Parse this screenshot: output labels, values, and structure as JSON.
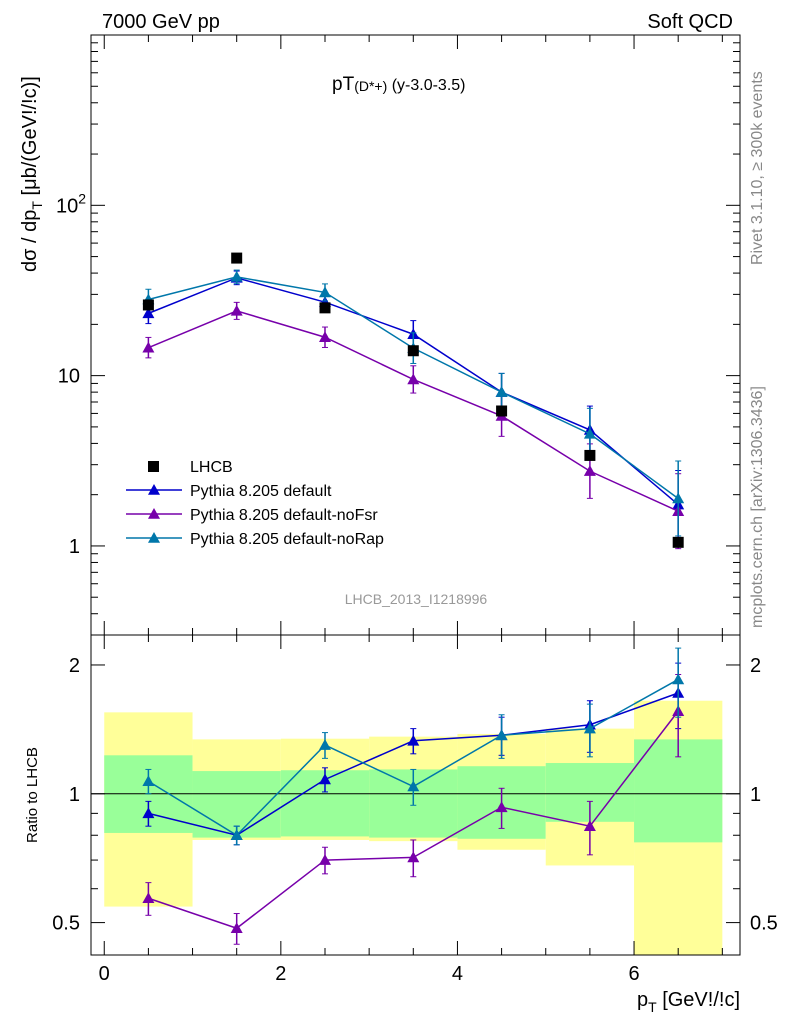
{
  "header": {
    "left": "7000 GeV pp",
    "right": "Soft QCD"
  },
  "side": {
    "rivet": "Rivet 3.1.10, ≥ 300k events",
    "mcplots": "mcplots.cern.ch [arXiv:1306.3436]"
  },
  "colors": {
    "data": "#000000",
    "default": "#0000cc",
    "noFsr": "#7700aa",
    "noRap": "#0077aa",
    "band_inner": "#99ff99",
    "band_outer": "#ffff99"
  },
  "chart_data": [
    {
      "type": "line",
      "title": "pT(D*+) (y-3.0-3.5)",
      "title_main": "pT",
      "title_sub": "(D*+)",
      "title_rest": " (y-3.0-3.5)",
      "ylabel": "dσ / dp_T [μb/(GeV!/!c)]",
      "ylabel_parts": [
        "dσ / dp",
        "T",
        " [μb/(GeV!/!c)]"
      ],
      "yscale": "log",
      "ylim": [
        0.3,
        1000
      ],
      "xlim": [
        -0.15,
        7.2
      ],
      "yticks": [
        {
          "v": 1,
          "label": "1"
        },
        {
          "v": 10,
          "label": "10"
        },
        {
          "v": 100,
          "label": "10",
          "sup": "2"
        }
      ],
      "analysis_label": "LHCB_2013_I1218996",
      "x": [
        0.5,
        1.5,
        2.5,
        3.5,
        4.5,
        5.5,
        6.5
      ],
      "legend": [
        {
          "name": "LHCB",
          "key": "data"
        },
        {
          "name": "Pythia 8.205 default",
          "key": "default"
        },
        {
          "name": "Pythia 8.205 default-noFsr",
          "key": "noFsr"
        },
        {
          "name": "Pythia 8.205 default-noRap",
          "key": "noRap"
        }
      ],
      "data": {
        "values": [
          26,
          49,
          25,
          14,
          6.2,
          3.4,
          1.05
        ]
      },
      "series": [
        {
          "name": "Pythia 8.205 default",
          "key": "default",
          "values": [
            23.2,
            37.5,
            27,
            17.5,
            8.0,
            4.8,
            1.75
          ],
          "err": [
            0.06,
            0.04,
            0.05,
            0.08,
            0.11,
            0.14,
            0.2
          ]
        },
        {
          "name": "Pythia 8.205 default-noFsr",
          "key": "noFsr",
          "values": [
            14.6,
            24.0,
            16.8,
            9.5,
            5.8,
            2.75,
            1.6
          ],
          "err": [
            0.06,
            0.05,
            0.06,
            0.08,
            0.12,
            0.16,
            0.22
          ]
        },
        {
          "name": "Pythia 8.205 default-noRap",
          "key": "noRap",
          "values": [
            28.0,
            38.0,
            30.8,
            14.5,
            8.0,
            4.55,
            1.9
          ],
          "err": [
            0.06,
            0.04,
            0.05,
            0.09,
            0.11,
            0.15,
            0.22
          ]
        }
      ]
    },
    {
      "type": "line",
      "ylabel": "Ratio to LHCB",
      "xlabel": "p_T [GeV!/!c]",
      "xlabel_parts": [
        "p",
        "T",
        " [GeV!/!c]"
      ],
      "yscale": "log",
      "ylim": [
        0.42,
        2.35
      ],
      "xlim": [
        -0.15,
        7.2
      ],
      "xticks": [
        0,
        2,
        4,
        6
      ],
      "yticks": [
        0.5,
        1,
        2
      ],
      "bins": [
        [
          0,
          1
        ],
        [
          1,
          2
        ],
        [
          2,
          3
        ],
        [
          3,
          4
        ],
        [
          4,
          5
        ],
        [
          5,
          6
        ],
        [
          6,
          7
        ]
      ],
      "band_inner": [
        [
          0.81,
          1.23
        ],
        [
          0.79,
          1.13
        ],
        [
          0.795,
          1.135
        ],
        [
          0.79,
          1.14
        ],
        [
          0.785,
          1.16
        ],
        [
          0.86,
          1.18
        ],
        [
          0.77,
          1.34
        ]
      ],
      "band_outer": [
        [
          0.545,
          1.55
        ],
        [
          0.78,
          1.34
        ],
        [
          0.78,
          1.345
        ],
        [
          0.775,
          1.36
        ],
        [
          0.74,
          1.38
        ],
        [
          0.68,
          1.42
        ],
        [
          0.42,
          1.65
        ]
      ],
      "series": [
        {
          "name": "Pythia 8.205 default",
          "key": "default",
          "values": [
            0.9,
            0.8,
            1.08,
            1.33,
            1.37,
            1.45,
            1.72
          ],
          "err": [
            0.06,
            0.04,
            0.07,
            0.09,
            0.14,
            0.2,
            0.3
          ]
        },
        {
          "name": "Pythia 8.205 default-noFsr",
          "key": "noFsr",
          "values": [
            0.57,
            0.485,
            0.7,
            0.71,
            0.93,
            0.84,
            1.56
          ],
          "err": [
            0.05,
            0.04,
            0.05,
            0.07,
            0.1,
            0.12,
            0.34
          ]
        },
        {
          "name": "Pythia 8.205 default-noRap",
          "key": "noRap",
          "values": [
            1.07,
            0.8,
            1.3,
            1.04,
            1.37,
            1.42,
            1.85
          ],
          "err": [
            0.07,
            0.04,
            0.09,
            0.1,
            0.16,
            0.2,
            0.34
          ]
        }
      ]
    }
  ]
}
